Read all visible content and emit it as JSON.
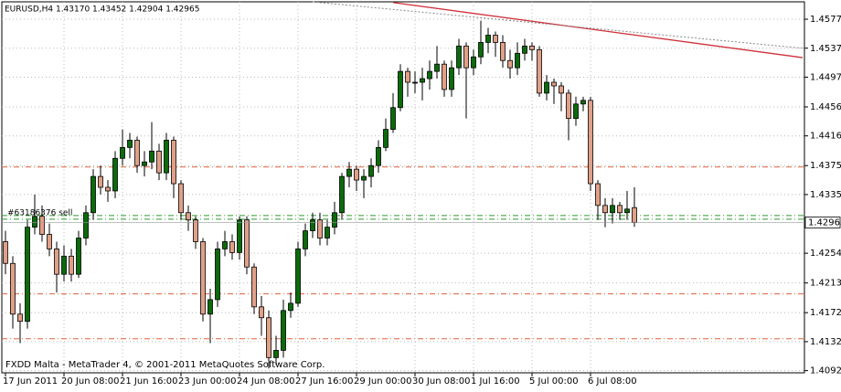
{
  "chart_data": {
    "type": "candlestick",
    "title": "EURUSD,H4  1.43170 1.43452 1.42904 1.42965",
    "footer": "FXDD Malta - MetaTrader 4, © 2001-2011 MetaQuotes Software Corp.",
    "categories": [
      "17 Jun 2011",
      null,
      null,
      null,
      null,
      null,
      null,
      null,
      "20 Jun 08:00",
      null,
      null,
      null,
      null,
      null,
      null,
      null,
      "21 Jun 16:00",
      null,
      null,
      null,
      null,
      null,
      null,
      null,
      "23 Jun 00:00",
      null,
      null,
      null,
      null,
      null,
      null,
      null,
      "24 Jun 08:00",
      null,
      null,
      null,
      null,
      null,
      null,
      null,
      "27 Jun 16:00",
      null,
      null,
      null,
      null,
      null,
      null,
      null,
      "29 Jun 00:00",
      null,
      null,
      null,
      null,
      null,
      null,
      null,
      "30 Jun 08:00",
      null,
      null,
      null,
      null,
      null,
      null,
      null,
      "1 Jul 16:00",
      null,
      null,
      null,
      null,
      null,
      null,
      null,
      "5 Jul 00:00",
      null,
      null,
      null,
      null,
      null,
      null,
      null,
      "6 Jul 08:00",
      null,
      null,
      null,
      null,
      null,
      null
    ],
    "open": [
      1.427,
      1.424,
      1.417,
      1.416,
      1.429,
      1.4305,
      1.428,
      1.426,
      1.4225,
      1.425,
      1.4225,
      1.4275,
      1.431,
      1.436,
      1.4345,
      1.434,
      1.4385,
      1.44,
      1.441,
      1.4375,
      1.438,
      1.4395,
      1.4365,
      1.441,
      1.435,
      1.431,
      1.43,
      1.427,
      1.417,
      1.419,
      1.426,
      1.427,
      1.4255,
      1.43,
      1.4235,
      1.418,
      1.4165,
      1.411,
      1.412,
      1.4175,
      1.4185,
      1.426,
      1.4285,
      1.43,
      1.4275,
      1.429,
      1.431,
      1.436,
      1.437,
      1.4355,
      1.436,
      1.4375,
      1.44,
      1.4425,
      1.4455,
      1.4505,
      1.449,
      1.449,
      1.4495,
      1.4505,
      1.4515,
      1.448,
      1.451,
      1.454,
      1.451,
      1.4525,
      1.4545,
      1.4555,
      1.4545,
      1.452,
      1.451,
      1.453,
      1.454,
      1.4535,
      1.4475,
      1.449,
      1.4485,
      1.4475,
      1.444,
      1.446,
      1.4465,
      1.435,
      1.432,
      1.431,
      1.432,
      1.431,
      1.4317
    ],
    "high": [
      1.4285,
      1.425,
      1.4185,
      1.43,
      1.4335,
      1.432,
      1.4295,
      1.427,
      1.4265,
      1.426,
      1.4285,
      1.432,
      1.437,
      1.4375,
      1.4355,
      1.4395,
      1.4425,
      1.442,
      1.4415,
      1.4395,
      1.4435,
      1.4405,
      1.442,
      1.4415,
      1.4355,
      1.432,
      1.4305,
      1.4275,
      1.4205,
      1.427,
      1.4285,
      1.428,
      1.4305,
      1.4305,
      1.424,
      1.4195,
      1.4175,
      1.414,
      1.419,
      1.42,
      1.427,
      1.4295,
      1.431,
      1.431,
      1.43,
      1.4325,
      1.4365,
      1.438,
      1.4375,
      1.437,
      1.4385,
      1.441,
      1.444,
      1.4475,
      1.4515,
      1.451,
      1.4505,
      1.451,
      1.452,
      1.454,
      1.452,
      1.452,
      1.455,
      1.4545,
      1.4535,
      1.4575,
      1.4565,
      1.456,
      1.4555,
      1.4535,
      1.4545,
      1.455,
      1.4545,
      1.454,
      1.45,
      1.4495,
      1.449,
      1.448,
      1.447,
      1.447,
      1.447,
      1.4355,
      1.433,
      1.433,
      1.4325,
      1.434,
      1.43452
    ],
    "low": [
      1.4225,
      1.415,
      1.413,
      1.415,
      1.428,
      1.427,
      1.425,
      1.42,
      1.4215,
      1.4215,
      1.422,
      1.4265,
      1.43,
      1.4335,
      1.4325,
      1.433,
      1.4375,
      1.4385,
      1.4365,
      1.436,
      1.437,
      1.4355,
      1.4355,
      1.433,
      1.43,
      1.4285,
      1.426,
      1.416,
      1.413,
      1.418,
      1.425,
      1.4245,
      1.4245,
      1.4225,
      1.417,
      1.414,
      1.4095,
      1.41,
      1.411,
      1.4165,
      1.418,
      1.425,
      1.4275,
      1.4265,
      1.4265,
      1.428,
      1.43,
      1.4345,
      1.434,
      1.433,
      1.4345,
      1.4365,
      1.4395,
      1.442,
      1.445,
      1.447,
      1.4475,
      1.4465,
      1.448,
      1.4495,
      1.447,
      1.447,
      1.45,
      1.444,
      1.45,
      1.4515,
      1.453,
      1.4525,
      1.451,
      1.4495,
      1.45,
      1.452,
      1.452,
      1.447,
      1.4465,
      1.446,
      1.445,
      1.441,
      1.443,
      1.445,
      1.434,
      1.43,
      1.429,
      1.4295,
      1.43,
      1.43,
      1.42904
    ],
    "close": [
      1.424,
      1.417,
      1.416,
      1.429,
      1.4305,
      1.428,
      1.426,
      1.4225,
      1.425,
      1.4225,
      1.4275,
      1.431,
      1.436,
      1.4345,
      1.434,
      1.4385,
      1.44,
      1.441,
      1.4375,
      1.438,
      1.4395,
      1.4365,
      1.441,
      1.435,
      1.431,
      1.43,
      1.427,
      1.417,
      1.419,
      1.426,
      1.427,
      1.4255,
      1.43,
      1.4235,
      1.418,
      1.4165,
      1.411,
      1.412,
      1.4175,
      1.4185,
      1.426,
      1.4285,
      1.43,
      1.4275,
      1.429,
      1.431,
      1.436,
      1.437,
      1.4355,
      1.436,
      1.4375,
      1.44,
      1.4425,
      1.4455,
      1.4505,
      1.449,
      1.449,
      1.4495,
      1.4505,
      1.4515,
      1.448,
      1.451,
      1.454,
      1.451,
      1.4525,
      1.4545,
      1.4555,
      1.4545,
      1.452,
      1.451,
      1.453,
      1.454,
      1.4535,
      1.4475,
      1.449,
      1.4485,
      1.4475,
      1.444,
      1.446,
      1.4465,
      1.435,
      1.432,
      1.431,
      1.432,
      1.431,
      1.4315,
      1.42965
    ],
    "up_color": "#0b6b0b",
    "down_color": "#e0a088",
    "ylim": [
      1.4089,
      1.4601
    ],
    "yticks": [
      {
        "value": 1.4577,
        "label": "1.45770"
      },
      {
        "value": 1.4537,
        "label": "1.45370"
      },
      {
        "value": 1.4497,
        "label": "1.44970"
      },
      {
        "value": 1.4456,
        "label": "1.44560"
      },
      {
        "value": 1.4416,
        "label": "1.44160"
      },
      {
        "value": 1.4375,
        "label": "1.43750"
      },
      {
        "value": 1.4335,
        "label": "1.43350"
      },
      {
        "value": 1.4254,
        "label": "1.42540"
      },
      {
        "value": 1.4213,
        "label": "1.42130"
      },
      {
        "value": 1.4172,
        "label": "1.41720"
      },
      {
        "value": 1.4132,
        "label": "1.41320"
      },
      {
        "value": 1.4092,
        "label": "1.40920"
      }
    ],
    "current_price": {
      "value": 1.42965,
      "label": "1.42965"
    },
    "grid": true,
    "levels": [
      {
        "value": 1.4373,
        "color": "#e0603a"
      },
      {
        "value": 1.4198,
        "color": "#e0603a"
      },
      {
        "value": 1.4136,
        "color": "#e0603a"
      },
      {
        "value": 1.4306,
        "color": "#2e9a2e",
        "label": "#63186376 sell"
      },
      {
        "value": 1.4301,
        "color": "#2e9a2e"
      }
    ],
    "lines": [
      {
        "color": "#d0303a",
        "x": [
          53,
          109
        ],
        "y": [
          1.46,
          1.4524
        ]
      },
      {
        "color": "#888888",
        "dash": true,
        "x": [
          42,
          109
        ],
        "y": [
          1.4601,
          1.4537
        ]
      }
    ]
  }
}
